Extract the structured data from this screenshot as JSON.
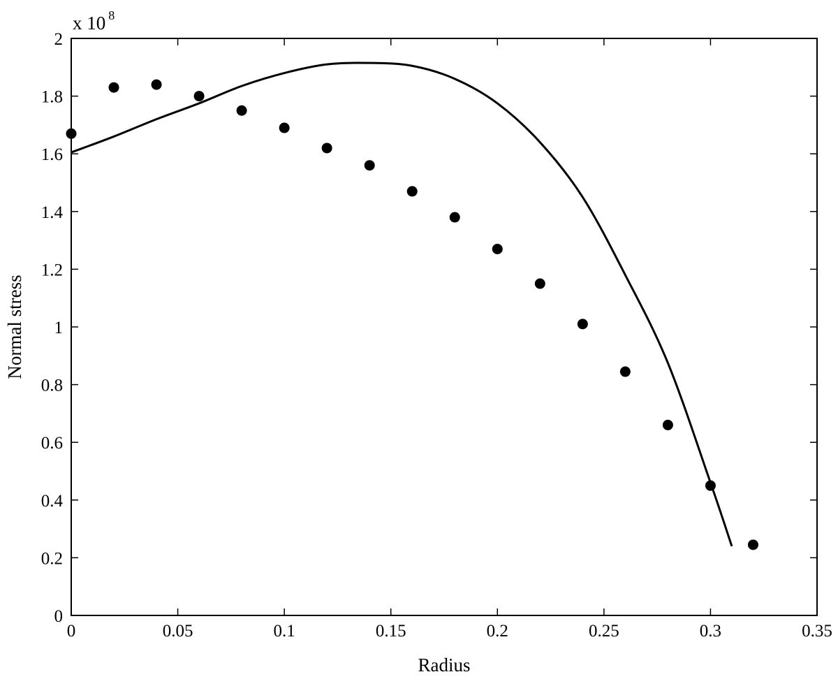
{
  "chart_data": {
    "type": "scatter",
    "title": "",
    "xlabel": "Radius",
    "ylabel": "Normal stress",
    "y_scale_base": "x 10",
    "y_scale_exponent": "8",
    "xlim": [
      0,
      0.35
    ],
    "ylim": [
      0,
      2
    ],
    "grid": false,
    "x_ticks": [
      {
        "value": 0,
        "label": "0"
      },
      {
        "value": 0.05,
        "label": "0.05"
      },
      {
        "value": 0.1,
        "label": "0.1"
      },
      {
        "value": 0.15,
        "label": "0.15"
      },
      {
        "value": 0.2,
        "label": "0.2"
      },
      {
        "value": 0.25,
        "label": "0.25"
      },
      {
        "value": 0.3,
        "label": "0.3"
      },
      {
        "value": 0.35,
        "label": "0.35"
      }
    ],
    "y_ticks": [
      {
        "value": 0,
        "label": "0"
      },
      {
        "value": 0.2,
        "label": "0.2"
      },
      {
        "value": 0.4,
        "label": "0.4"
      },
      {
        "value": 0.6,
        "label": "0.6"
      },
      {
        "value": 0.8,
        "label": "0.8"
      },
      {
        "value": 1.0,
        "label": "1"
      },
      {
        "value": 1.2,
        "label": "1.2"
      },
      {
        "value": 1.4,
        "label": "1.4"
      },
      {
        "value": 1.6,
        "label": "1.6"
      },
      {
        "value": 1.8,
        "label": "1.8"
      },
      {
        "value": 2.0,
        "label": "2"
      }
    ],
    "series": [
      {
        "kind": "markers",
        "color": "#000000",
        "x": [
          0,
          0.02,
          0.04,
          0.06,
          0.08,
          0.1,
          0.12,
          0.14,
          0.16,
          0.18,
          0.2,
          0.22,
          0.24,
          0.26,
          0.28,
          0.3,
          0.32
        ],
        "y": [
          1.67,
          1.83,
          1.84,
          1.8,
          1.75,
          1.69,
          1.62,
          1.56,
          1.47,
          1.38,
          1.27,
          1.15,
          1.01,
          0.845,
          0.66,
          0.45,
          0.245
        ]
      },
      {
        "kind": "line",
        "color": "#000000",
        "x": [
          0,
          0.02,
          0.04,
          0.06,
          0.08,
          0.1,
          0.12,
          0.14,
          0.16,
          0.18,
          0.2,
          0.22,
          0.24,
          0.26,
          0.28,
          0.3,
          0.31
        ],
        "y": [
          1.605,
          1.66,
          1.72,
          1.775,
          1.835,
          1.88,
          1.91,
          1.915,
          1.905,
          1.86,
          1.775,
          1.64,
          1.45,
          1.18,
          0.875,
          0.46,
          0.24
        ]
      }
    ]
  }
}
